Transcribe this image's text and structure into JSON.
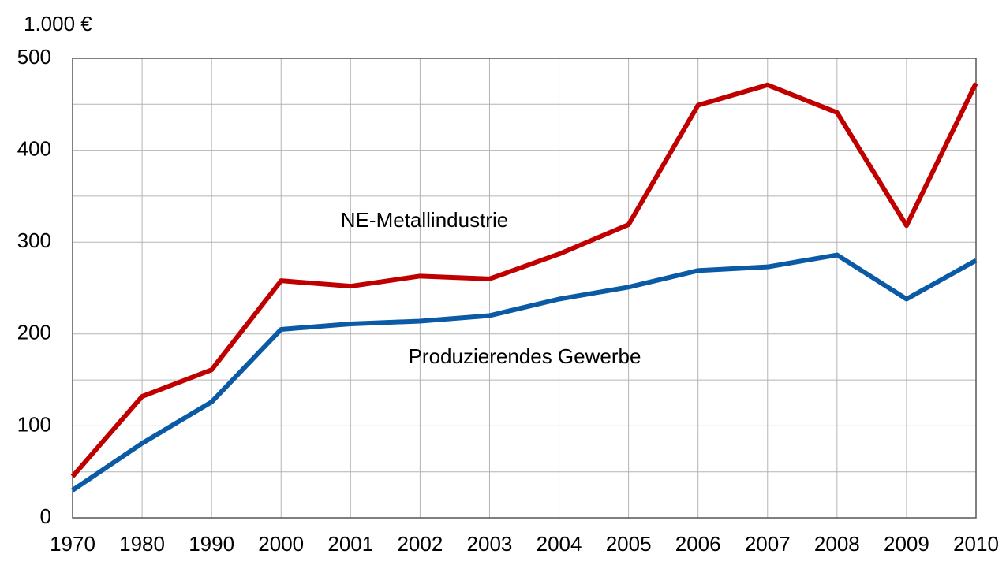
{
  "chart_data": {
    "type": "line",
    "y_unit_label": "1.000 €",
    "categories": [
      "1970",
      "1980",
      "1990",
      "2000",
      "2001",
      "2002",
      "2003",
      "2004",
      "2005",
      "2006",
      "2007",
      "2008",
      "2009",
      "2010"
    ],
    "series": [
      {
        "name": "NE-Metallindustrie",
        "color": "#c00000",
        "values": [
          45,
          132,
          161,
          258,
          252,
          263,
          260,
          287,
          319,
          449,
          471,
          441,
          318,
          473
        ]
      },
      {
        "name": "Produzierendes Gewerbe",
        "color": "#0a5aa6",
        "values": [
          30,
          81,
          126,
          205,
          211,
          214,
          220,
          238,
          251,
          269,
          273,
          286,
          238,
          280
        ]
      }
    ],
    "ylim": [
      0,
      500
    ],
    "yticks": [
      0,
      100,
      200,
      300,
      400,
      500
    ],
    "y_minor_ticks": [
      50,
      150,
      250,
      350,
      450
    ],
    "grid": true
  }
}
